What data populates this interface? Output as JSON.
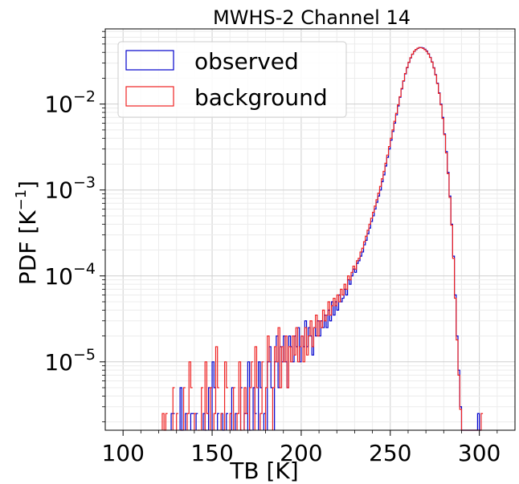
{
  "chart_data": {
    "type": "histogram",
    "title": "MWHS-2 Channel 14",
    "xlabel": "TB [K]",
    "ylabel": "PDF [K",
    "ylabel_exponent": "−1",
    "ylabel_suffix": "]",
    "xlim": [
      90,
      320
    ],
    "ylim": [
      1.6e-06,
      0.075
    ],
    "yscale": "log",
    "grid": true,
    "legend_position": "top-left",
    "xticks": [
      100,
      150,
      200,
      250,
      300
    ],
    "xtick_labels": [
      "100",
      "150",
      "200",
      "250",
      "300"
    ],
    "yticks": [
      1e-05,
      0.0001,
      0.001,
      0.01
    ],
    "ytick_labels": [
      {
        "base": "10",
        "exp": "−5"
      },
      {
        "base": "10",
        "exp": "−4"
      },
      {
        "base": "10",
        "exp": "−3"
      },
      {
        "base": "10",
        "exp": "−2"
      }
    ],
    "bin_width": 1,
    "series": [
      {
        "name": "observed",
        "color": "#0000cc",
        "points": [
          [
            127,
            2.5e-06
          ],
          [
            128,
            2.5e-06
          ],
          [
            132,
            5e-06
          ],
          [
            133,
            1.6e-06
          ],
          [
            135,
            2.5e-06
          ],
          [
            138,
            2.5e-06
          ],
          [
            139,
            2.5e-06
          ],
          [
            141,
            2.5e-06
          ],
          [
            145,
            2.5e-06
          ],
          [
            146,
            1.6e-06
          ],
          [
            148,
            5e-06
          ],
          [
            150,
            1e-05
          ],
          [
            151,
            5e-06
          ],
          [
            153,
            2.5e-06
          ],
          [
            155,
            2.5e-06
          ],
          [
            156,
            1.6e-06
          ],
          [
            158,
            2.5e-06
          ],
          [
            161,
            5e-06
          ],
          [
            163,
            2.5e-06
          ],
          [
            166,
            5e-06
          ],
          [
            168,
            2.5e-06
          ],
          [
            170,
            1e-05
          ],
          [
            171,
            1.6e-06
          ],
          [
            173,
            5e-06
          ],
          [
            174,
            2.5e-06
          ],
          [
            176,
            1e-05
          ],
          [
            177,
            5e-06
          ],
          [
            179,
            2.5e-06
          ],
          [
            181,
            1e-05
          ],
          [
            182,
            1.5e-05
          ],
          [
            183,
            5e-06
          ],
          [
            185,
            1e-05
          ],
          [
            186,
            2e-05
          ],
          [
            187,
            5e-06
          ],
          [
            188,
            1.5e-05
          ],
          [
            189,
            1e-05
          ],
          [
            190,
            2e-05
          ],
          [
            191,
            1e-05
          ],
          [
            192,
            5e-06
          ],
          [
            193,
            2e-05
          ],
          [
            194,
            1.5e-05
          ],
          [
            195,
            1e-05
          ],
          [
            196,
            2e-05
          ],
          [
            197,
            1.5e-05
          ],
          [
            198,
            2.5e-05
          ],
          [
            199,
            1e-05
          ],
          [
            200,
            2e-05
          ],
          [
            201,
            1.5e-05
          ],
          [
            202,
            3e-05
          ],
          [
            203,
            1.5e-05
          ],
          [
            204,
            2.5e-05
          ],
          [
            205,
            2e-05
          ],
          [
            206,
            1.2e-05
          ],
          [
            207,
            2.5e-05
          ],
          [
            208,
            2e-05
          ],
          [
            209,
            3e-05
          ],
          [
            210,
            2e-05
          ],
          [
            211,
            3e-05
          ],
          [
            212,
            2.5e-05
          ],
          [
            213,
            3.5e-05
          ],
          [
            214,
            2.5e-05
          ],
          [
            215,
            4e-05
          ],
          [
            216,
            3e-05
          ],
          [
            217,
            5e-05
          ],
          [
            218,
            3.5e-05
          ],
          [
            219,
            5e-05
          ],
          [
            220,
            4e-05
          ],
          [
            221,
            6e-05
          ],
          [
            222,
            5e-05
          ],
          [
            223,
            5.5e-05
          ],
          [
            224,
            7e-05
          ],
          [
            225,
            6e-05
          ],
          [
            226,
            9e-05
          ],
          [
            227,
            8e-05
          ],
          [
            228,
            0.0001
          ],
          [
            229,
            0.00012
          ],
          [
            230,
            0.00011
          ],
          [
            231,
            0.00014
          ],
          [
            232,
            0.00015
          ],
          [
            233,
            0.00017
          ],
          [
            234,
            0.00019
          ],
          [
            235,
            0.00023
          ],
          [
            236,
            0.00026
          ],
          [
            237,
            0.00031
          ],
          [
            238,
            0.00036
          ],
          [
            239,
            0.00043
          ],
          [
            240,
            0.0005
          ],
          [
            241,
            0.0006
          ],
          [
            242,
            0.00072
          ],
          [
            243,
            0.00085
          ],
          [
            244,
            0.001
          ],
          [
            245,
            0.00125
          ],
          [
            246,
            0.0015
          ],
          [
            247,
            0.0019
          ],
          [
            248,
            0.0024
          ],
          [
            249,
            0.003
          ],
          [
            250,
            0.0038
          ],
          [
            251,
            0.0048
          ],
          [
            252,
            0.006
          ],
          [
            253,
            0.0075
          ],
          [
            254,
            0.0095
          ],
          [
            255,
            0.012
          ],
          [
            256,
            0.015
          ],
          [
            257,
            0.0185
          ],
          [
            258,
            0.0225
          ],
          [
            259,
            0.0265
          ],
          [
            260,
            0.0305
          ],
          [
            261,
            0.0345
          ],
          [
            262,
            0.038
          ],
          [
            263,
            0.041
          ],
          [
            264,
            0.043
          ],
          [
            265,
            0.0445
          ],
          [
            266,
            0.0455
          ],
          [
            267,
            0.0455
          ],
          [
            268,
            0.045
          ],
          [
            269,
            0.0435
          ],
          [
            270,
            0.0415
          ],
          [
            271,
            0.0385
          ],
          [
            272,
            0.035
          ],
          [
            273,
            0.031
          ],
          [
            274,
            0.0265
          ],
          [
            275,
            0.022
          ],
          [
            276,
            0.0175
          ],
          [
            277,
            0.0135
          ],
          [
            278,
            0.01
          ],
          [
            279,
            0.007
          ],
          [
            280,
            0.0045
          ],
          [
            281,
            0.0028
          ],
          [
            282,
            0.0016
          ],
          [
            283,
            0.00085
          ],
          [
            284,
            0.0004
          ],
          [
            285,
            0.00017
          ],
          [
            286,
            6e-05
          ],
          [
            287,
            2e-05
          ],
          [
            288,
            8e-06
          ],
          [
            289,
            3e-06
          ],
          [
            290,
            1.6e-06
          ],
          [
            291,
            1.6e-06
          ],
          [
            292,
            1.6e-06
          ],
          [
            293,
            1.6e-06
          ],
          [
            294,
            1.6e-06
          ],
          [
            295,
            1.6e-06
          ],
          [
            296,
            1.6e-06
          ],
          [
            297,
            1.6e-06
          ],
          [
            298,
            1.6e-06
          ],
          [
            299,
            2.5e-06
          ],
          [
            300,
            1.6e-06
          ]
        ]
      },
      {
        "name": "background",
        "color": "#ee2222",
        "points": [
          [
            122,
            2.5e-06
          ],
          [
            123,
            1.6e-06
          ],
          [
            124,
            2.5e-06
          ],
          [
            128,
            5e-06
          ],
          [
            130,
            2.5e-06
          ],
          [
            132,
            1.6e-06
          ],
          [
            134,
            5e-06
          ],
          [
            136,
            2.5e-06
          ],
          [
            137,
            1e-05
          ],
          [
            138,
            5e-06
          ],
          [
            140,
            2.5e-06
          ],
          [
            142,
            1.6e-06
          ],
          [
            144,
            5e-06
          ],
          [
            146,
            1e-05
          ],
          [
            147,
            2.5e-06
          ],
          [
            149,
            5e-06
          ],
          [
            151,
            2.5e-06
          ],
          [
            152,
            1.5e-05
          ],
          [
            153,
            5e-06
          ],
          [
            155,
            2.5e-06
          ],
          [
            157,
            1e-05
          ],
          [
            158,
            5e-06
          ],
          [
            160,
            2.5e-06
          ],
          [
            162,
            5e-06
          ],
          [
            164,
            2.5e-06
          ],
          [
            165,
            1e-05
          ],
          [
            166,
            1.6e-06
          ],
          [
            168,
            5e-06
          ],
          [
            169,
            2.5e-06
          ],
          [
            171,
            5e-06
          ],
          [
            172,
            1e-05
          ],
          [
            174,
            1.5e-05
          ],
          [
            175,
            5e-06
          ],
          [
            177,
            2.5e-06
          ],
          [
            178,
            1e-05
          ],
          [
            180,
            5e-06
          ],
          [
            181,
            2e-05
          ],
          [
            182,
            1e-05
          ],
          [
            184,
            5e-06
          ],
          [
            185,
            1.5e-05
          ],
          [
            186,
            1e-05
          ],
          [
            187,
            2.5e-05
          ],
          [
            188,
            5e-06
          ],
          [
            189,
            1.5e-05
          ],
          [
            190,
            1e-05
          ],
          [
            191,
            2e-05
          ],
          [
            192,
            5e-06
          ],
          [
            193,
            1.5e-05
          ],
          [
            194,
            1e-05
          ],
          [
            195,
            2e-05
          ],
          [
            196,
            1.2e-05
          ],
          [
            197,
            2.5e-05
          ],
          [
            198,
            1e-05
          ],
          [
            199,
            1.5e-05
          ],
          [
            200,
            2e-05
          ],
          [
            201,
            1e-05
          ],
          [
            202,
            2.5e-05
          ],
          [
            203,
            1.2e-05
          ],
          [
            204,
            2e-05
          ],
          [
            205,
            3e-05
          ],
          [
            206,
            1.5e-05
          ],
          [
            207,
            2.5e-05
          ],
          [
            208,
            3.5e-05
          ],
          [
            209,
            2e-05
          ],
          [
            210,
            3e-05
          ],
          [
            211,
            2.5e-05
          ],
          [
            212,
            4e-05
          ],
          [
            213,
            3e-05
          ],
          [
            214,
            3.5e-05
          ],
          [
            215,
            5e-05
          ],
          [
            216,
            3.5e-05
          ],
          [
            217,
            4.5e-05
          ],
          [
            218,
            5.5e-05
          ],
          [
            219,
            4.5e-05
          ],
          [
            220,
            6e-05
          ],
          [
            221,
            5e-05
          ],
          [
            222,
            7e-05
          ],
          [
            223,
            6e-05
          ],
          [
            224,
            8e-05
          ],
          [
            225,
            7e-05
          ],
          [
            226,
            0.0001
          ],
          [
            227,
            9e-05
          ],
          [
            228,
            0.00011
          ],
          [
            229,
            0.00013
          ],
          [
            230,
            0.00012
          ],
          [
            231,
            0.00015
          ],
          [
            232,
            0.00016
          ],
          [
            233,
            0.00019
          ],
          [
            234,
            0.00021
          ],
          [
            235,
            0.00025
          ],
          [
            236,
            0.00029
          ],
          [
            237,
            0.00034
          ],
          [
            238,
            0.0004
          ],
          [
            239,
            0.00047
          ],
          [
            240,
            0.00055
          ],
          [
            241,
            0.00065
          ],
          [
            242,
            0.00077
          ],
          [
            243,
            0.00092
          ],
          [
            244,
            0.0011
          ],
          [
            245,
            0.00135
          ],
          [
            246,
            0.00165
          ],
          [
            247,
            0.00205
          ],
          [
            248,
            0.00255
          ],
          [
            249,
            0.0032
          ],
          [
            250,
            0.004
          ],
          [
            251,
            0.005
          ],
          [
            252,
            0.0063
          ],
          [
            253,
            0.0078
          ],
          [
            254,
            0.0098
          ],
          [
            255,
            0.0122
          ],
          [
            256,
            0.0152
          ],
          [
            257,
            0.0187
          ],
          [
            258,
            0.0227
          ],
          [
            259,
            0.0267
          ],
          [
            260,
            0.0307
          ],
          [
            261,
            0.0347
          ],
          [
            262,
            0.0382
          ],
          [
            263,
            0.0412
          ],
          [
            264,
            0.0432
          ],
          [
            265,
            0.0447
          ],
          [
            266,
            0.0455
          ],
          [
            267,
            0.0452
          ],
          [
            268,
            0.0445
          ],
          [
            269,
            0.043
          ],
          [
            270,
            0.041
          ],
          [
            271,
            0.0382
          ],
          [
            272,
            0.0348
          ],
          [
            273,
            0.0308
          ],
          [
            274,
            0.0263
          ],
          [
            275,
            0.0218
          ],
          [
            276,
            0.0173
          ],
          [
            277,
            0.0133
          ],
          [
            278,
            0.0098
          ],
          [
            279,
            0.0068
          ],
          [
            280,
            0.0044
          ],
          [
            281,
            0.0027
          ],
          [
            282,
            0.00155
          ],
          [
            283,
            0.00082
          ],
          [
            284,
            0.00039
          ],
          [
            285,
            0.00016
          ],
          [
            286,
            5.5e-05
          ],
          [
            287,
            1.8e-05
          ],
          [
            288,
            7e-06
          ],
          [
            289,
            2.8e-06
          ],
          [
            290,
            1.6e-06
          ],
          [
            291,
            1.6e-06
          ],
          [
            292,
            1.6e-06
          ],
          [
            293,
            1.6e-06
          ],
          [
            294,
            1.6e-06
          ],
          [
            295,
            1.6e-06
          ],
          [
            296,
            1.6e-06
          ],
          [
            297,
            1.6e-06
          ],
          [
            298,
            1.6e-06
          ],
          [
            299,
            1.6e-06
          ],
          [
            300,
            1.6e-06
          ],
          [
            301,
            2.5e-06
          ]
        ]
      }
    ]
  }
}
